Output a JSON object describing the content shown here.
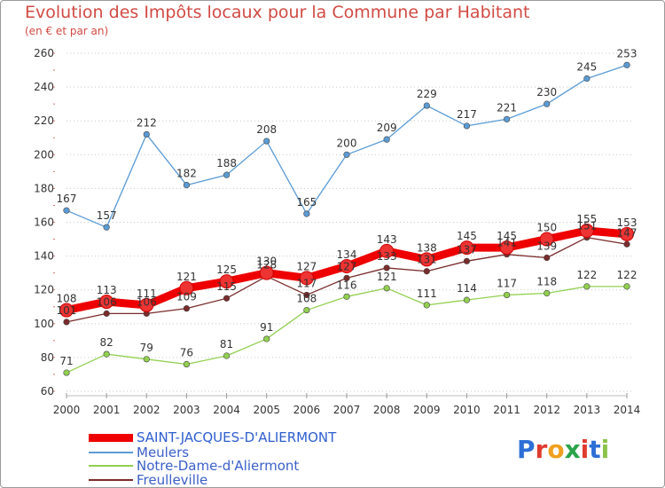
{
  "title": "Evolution des Impôts locaux pour la Commune par Habitant",
  "subtitle": "(en € et par an)",
  "logo_text": "Proxiti",
  "chart_data": {
    "type": "line",
    "x": [
      "2000",
      "2001",
      "2002",
      "2003",
      "2004",
      "2005",
      "2006",
      "2007",
      "2008",
      "2009",
      "2010",
      "2011",
      "2012",
      "2013",
      "2014"
    ],
    "ylim": [
      60,
      260
    ],
    "yticks": [
      60,
      80,
      100,
      120,
      140,
      160,
      180,
      200,
      220,
      240,
      260
    ],
    "grid": "horizontal-dotted",
    "legend_position": "bottom-left",
    "series": [
      {
        "name": "SAINT-JACQUES-D'ALIERMONT",
        "color": "#ee0000",
        "values": [
          108,
          113,
          111,
          121,
          125,
          130,
          127,
          134,
          143,
          138,
          145,
          145,
          150,
          155,
          153
        ]
      },
      {
        "name": "Meulers",
        "color": "#5b9bd5",
        "values": [
          167,
          157,
          212,
          182,
          188,
          208,
          165,
          200,
          209,
          229,
          217,
          221,
          230,
          245,
          253
        ]
      },
      {
        "name": "Notre-Dame-d'Aliermont",
        "color": "#92d050",
        "values": [
          71,
          82,
          79,
          76,
          81,
          91,
          108,
          116,
          121,
          111,
          114,
          117,
          118,
          122,
          122
        ]
      },
      {
        "name": "Freulleville",
        "color": "#7a2b2b",
        "values": [
          101,
          106,
          106,
          109,
          115,
          128,
          117,
          127,
          133,
          131,
          137,
          141,
          139,
          151,
          147
        ]
      }
    ]
  }
}
